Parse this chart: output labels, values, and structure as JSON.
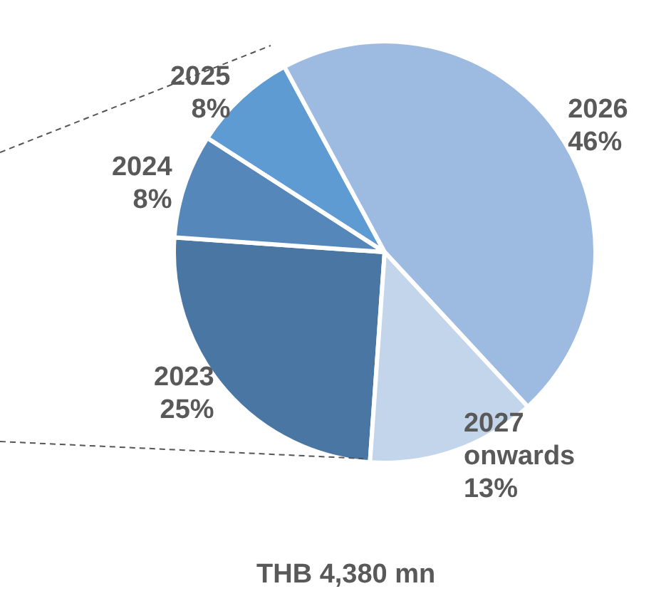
{
  "chart_data": {
    "type": "pie",
    "categories": [
      "2023",
      "2024",
      "2025",
      "2026",
      "2027 onwards"
    ],
    "values": [
      25,
      8,
      8,
      46,
      13
    ],
    "value_labels": [
      "25%",
      "8%",
      "8%",
      "46%",
      "13%"
    ],
    "colors": [
      "#4a76a3",
      "#5687ba",
      "#5e9bd3",
      "#9dbbe0",
      "#c3d5eb"
    ],
    "annotations": [
      "THB 4,380 mn"
    ]
  }
}
